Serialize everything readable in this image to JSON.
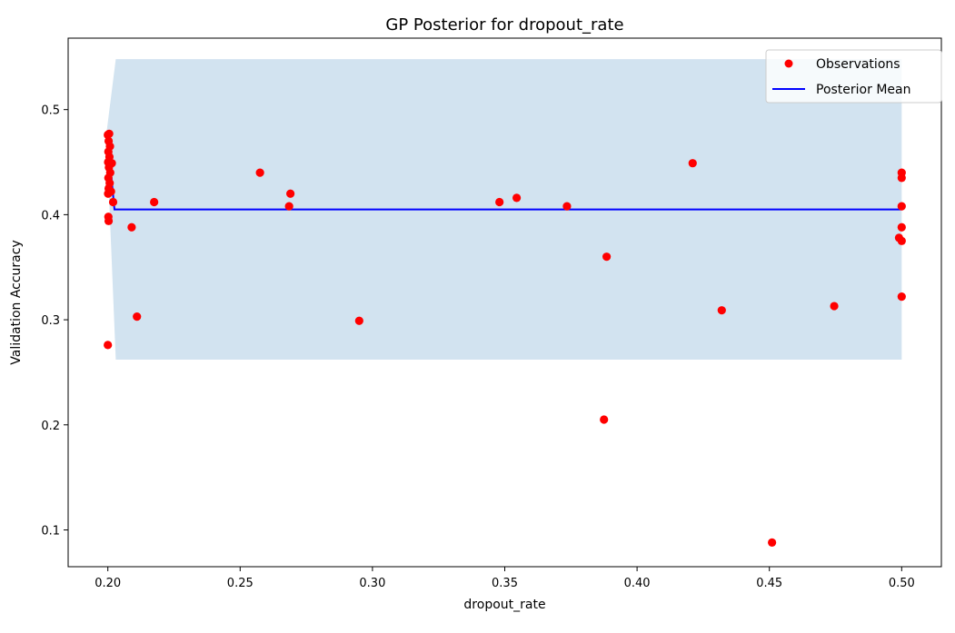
{
  "chart_data": {
    "type": "scatter",
    "title": "GP Posterior for dropout_rate",
    "xlabel": "dropout_rate",
    "ylabel": "Validation Accuracy",
    "xlim": [
      0.185,
      0.515
    ],
    "ylim": [
      0.065,
      0.568
    ],
    "x_ticks": [
      0.2,
      0.25,
      0.3,
      0.35,
      0.4,
      0.45,
      0.5
    ],
    "x_tick_labels": [
      "0.20",
      "0.25",
      "0.30",
      "0.35",
      "0.40",
      "0.45",
      "0.50"
    ],
    "y_ticks": [
      0.1,
      0.2,
      0.3,
      0.4,
      0.5
    ],
    "y_tick_labels": [
      "0.1",
      "0.2",
      "0.3",
      "0.4",
      "0.5"
    ],
    "grid": false,
    "legend_position": "upper right",
    "colors": {
      "observations": "#ff0000",
      "mean": "#0000ff",
      "band": "#d2e3f0"
    },
    "series": [
      {
        "name": "Observations",
        "kind": "scatter",
        "points": [
          [
            0.2,
            0.476
          ],
          [
            0.2005,
            0.477
          ],
          [
            0.2003,
            0.47
          ],
          [
            0.2008,
            0.465
          ],
          [
            0.2002,
            0.46
          ],
          [
            0.2006,
            0.455
          ],
          [
            0.2001,
            0.45
          ],
          [
            0.2004,
            0.445
          ],
          [
            0.2009,
            0.44
          ],
          [
            0.2002,
            0.435
          ],
          [
            0.2007,
            0.43
          ],
          [
            0.2003,
            0.425
          ],
          [
            0.2001,
            0.42
          ],
          [
            0.2012,
            0.422
          ],
          [
            0.2015,
            0.449
          ],
          [
            0.202,
            0.412
          ],
          [
            0.2002,
            0.398
          ],
          [
            0.2003,
            0.394
          ],
          [
            0.2,
            0.276
          ],
          [
            0.209,
            0.388
          ],
          [
            0.211,
            0.303
          ],
          [
            0.2175,
            0.412
          ],
          [
            0.2575,
            0.44
          ],
          [
            0.2685,
            0.408
          ],
          [
            0.269,
            0.42
          ],
          [
            0.295,
            0.299
          ],
          [
            0.348,
            0.412
          ],
          [
            0.3545,
            0.416
          ],
          [
            0.3735,
            0.408
          ],
          [
            0.3875,
            0.205
          ],
          [
            0.3885,
            0.36
          ],
          [
            0.421,
            0.449
          ],
          [
            0.432,
            0.309
          ],
          [
            0.451,
            0.088
          ],
          [
            0.4745,
            0.313
          ],
          [
            0.499,
            0.378
          ],
          [
            0.5,
            0.44
          ],
          [
            0.5,
            0.435
          ],
          [
            0.5,
            0.408
          ],
          [
            0.5,
            0.388
          ],
          [
            0.5,
            0.375
          ],
          [
            0.5,
            0.322
          ]
        ]
      },
      {
        "name": "Posterior Mean",
        "kind": "line",
        "points": [
          [
            0.1995,
            0.477
          ],
          [
            0.201,
            0.445
          ],
          [
            0.2025,
            0.405
          ],
          [
            0.25,
            0.405
          ],
          [
            0.35,
            0.405
          ],
          [
            0.45,
            0.405
          ],
          [
            0.5,
            0.405
          ]
        ]
      },
      {
        "kind": "band",
        "upper": [
          [
            0.1995,
            0.478
          ],
          [
            0.203,
            0.548
          ],
          [
            0.5,
            0.548
          ]
        ],
        "lower": [
          [
            0.1995,
            0.476
          ],
          [
            0.203,
            0.262
          ],
          [
            0.5,
            0.262
          ]
        ]
      }
    ]
  }
}
